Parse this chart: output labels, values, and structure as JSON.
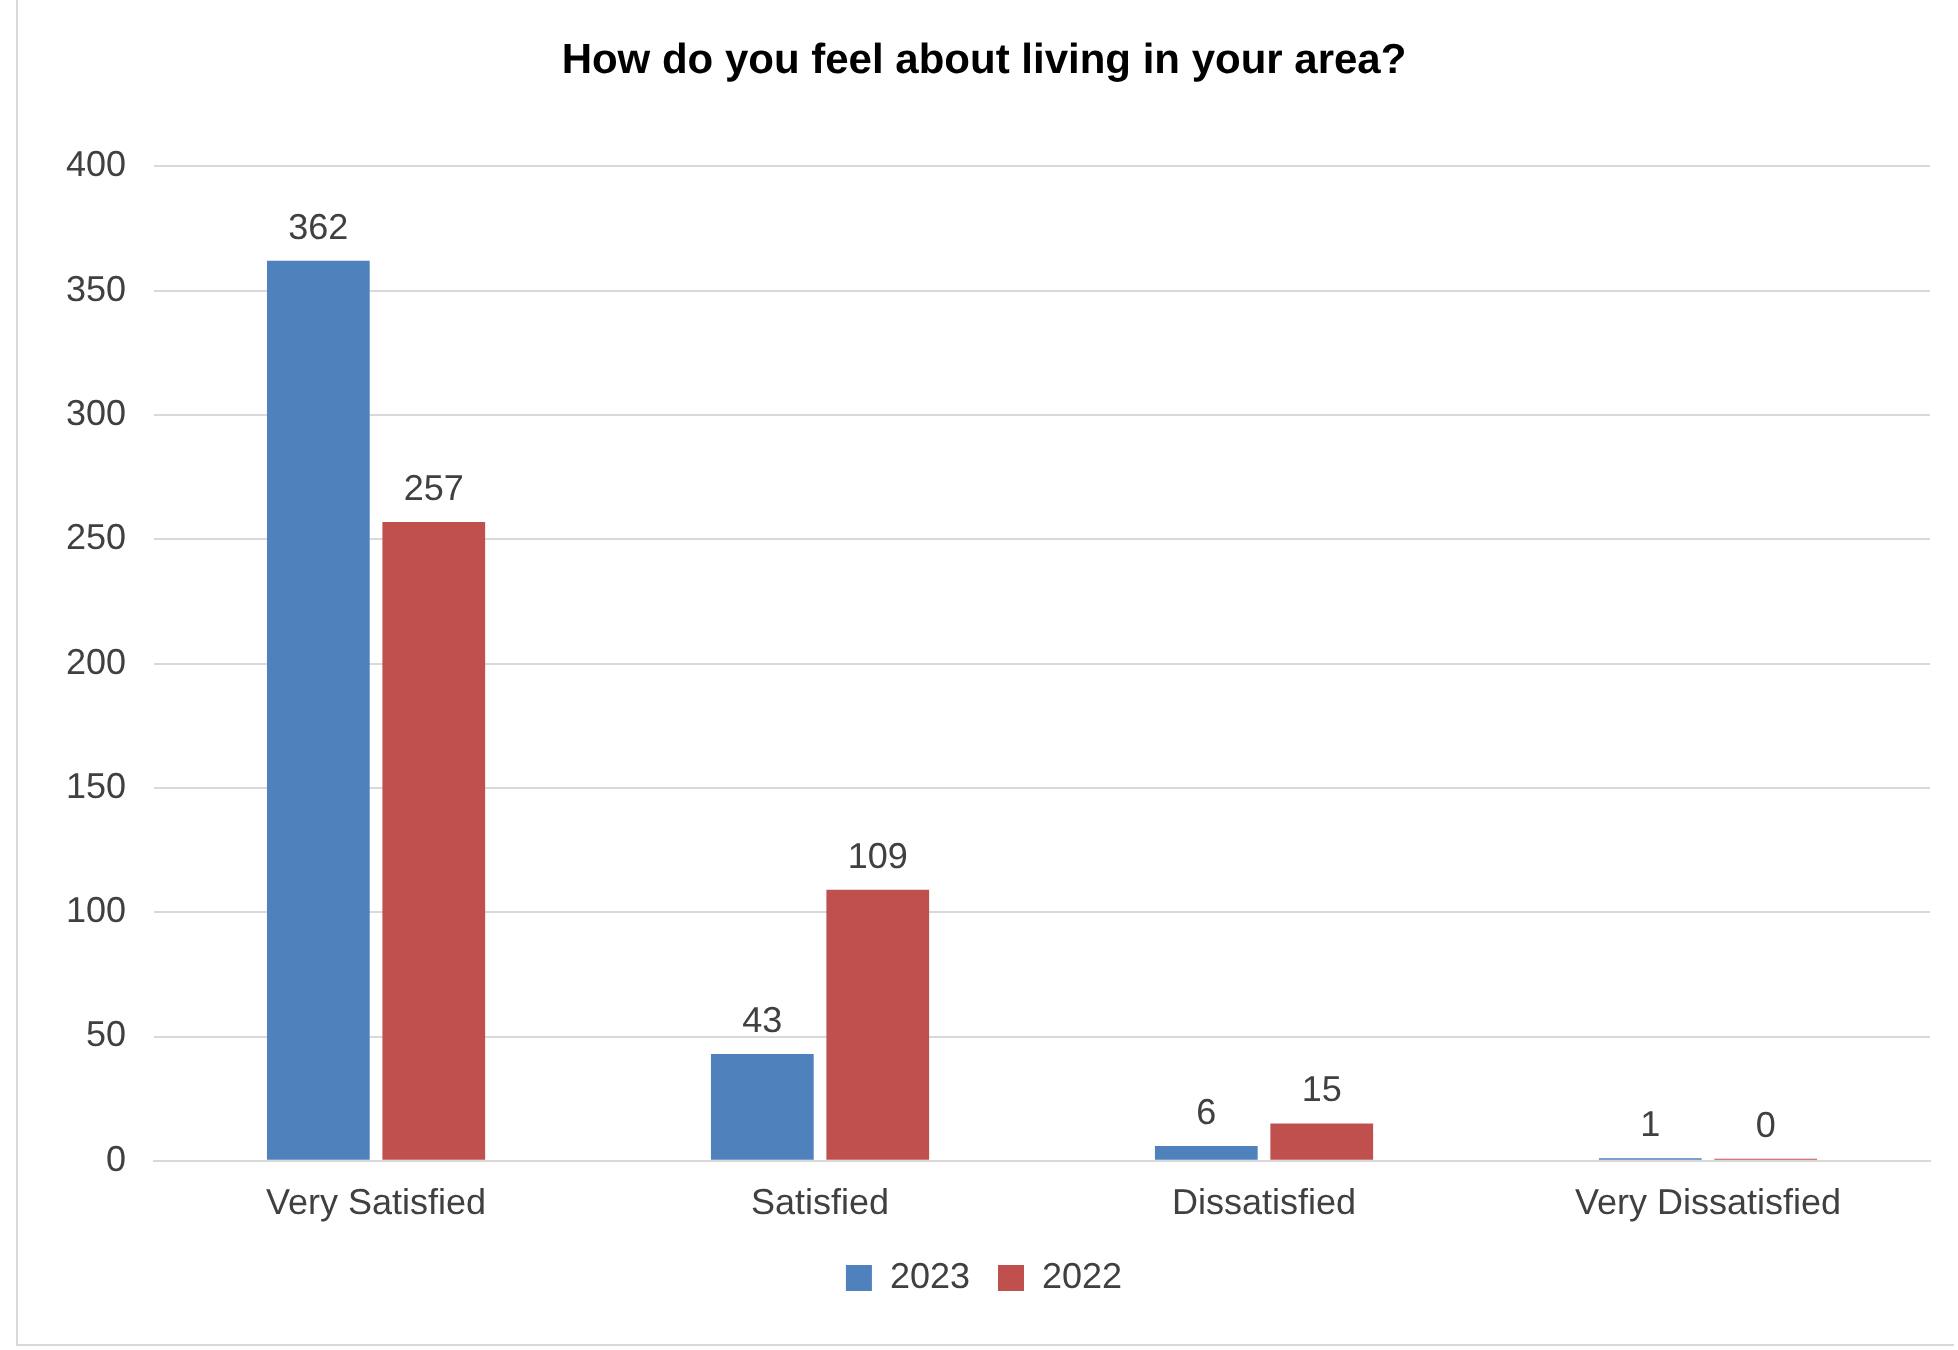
{
  "chart_data": {
    "type": "bar",
    "title": "How do you feel about living in your area?",
    "categories": [
      "Very Satisfied",
      "Satisfied",
      "Dissatisfied",
      "Very Dissatisfied"
    ],
    "series": [
      {
        "name": "2023",
        "color": "#4f81bd",
        "values": [
          362,
          43,
          6,
          1
        ]
      },
      {
        "name": "2022",
        "color": "#c0504d",
        "values": [
          257,
          109,
          15,
          0
        ]
      }
    ],
    "ylim": [
      0,
      400
    ],
    "yticks": [
      0,
      50,
      100,
      150,
      200,
      250,
      300,
      350,
      400
    ],
    "grid": "y",
    "legend": "bottom",
    "data_labels": true
  }
}
